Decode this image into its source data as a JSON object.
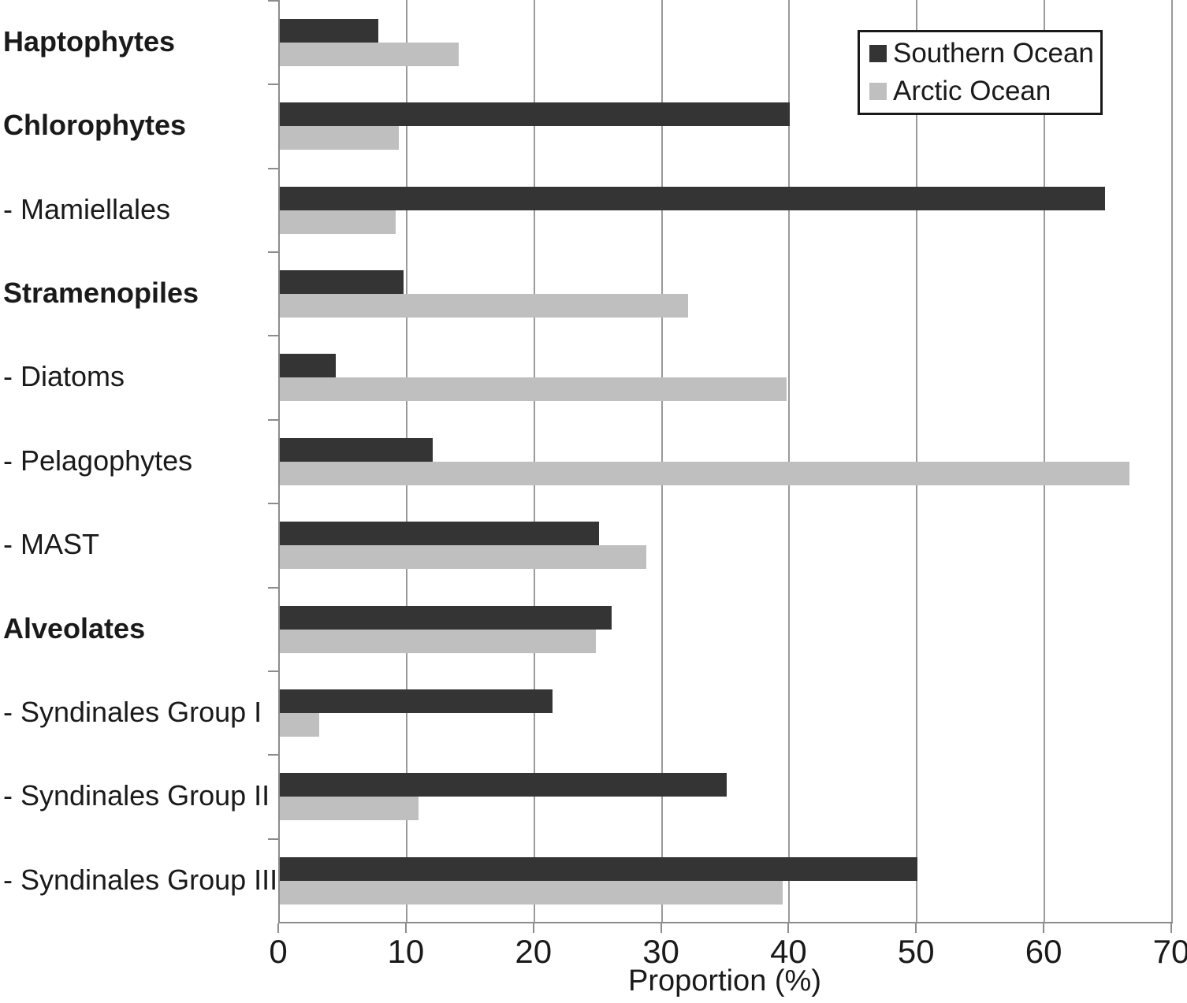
{
  "chart_data": {
    "type": "bar",
    "orientation": "horizontal",
    "title": "",
    "xlabel": "Proportion (%)",
    "ylabel": "",
    "xlim": [
      0,
      70
    ],
    "xticks": [
      0,
      10,
      20,
      30,
      40,
      50,
      60,
      70
    ],
    "grid": "vertical gridlines every 10",
    "legend_position": "top-right",
    "categories": [
      {
        "label": "Haptophytes",
        "bold": true
      },
      {
        "label": "Chlorophytes",
        "bold": true
      },
      {
        "label": "- Mamiellales",
        "bold": false
      },
      {
        "label": "Stramenopiles",
        "bold": true
      },
      {
        "label": "- Diatoms",
        "bold": false
      },
      {
        "label": "- Pelagophytes",
        "bold": false
      },
      {
        "label": "- MAST",
        "bold": false
      },
      {
        "label": "Alveolates",
        "bold": true
      },
      {
        "label": "- Syndinales Group I",
        "bold": false
      },
      {
        "label": "- Syndinales Group II",
        "bold": false
      },
      {
        "label": "- Syndinales Group III",
        "bold": false
      }
    ],
    "series": [
      {
        "name": "Southern Ocean",
        "color": "#343434",
        "values": [
          7.7,
          40,
          64.7,
          9.7,
          4.4,
          12,
          25,
          26,
          21.4,
          35,
          50
        ]
      },
      {
        "name": "Arctic Ocean",
        "color": "#bfbfbf",
        "values": [
          14,
          9.3,
          9.1,
          32,
          39.7,
          66.6,
          28.7,
          24.8,
          3.1,
          10.9,
          39.4
        ]
      }
    ]
  },
  "colors": {
    "gridline": "#9a9a9a",
    "axis": "#8c8c8c",
    "text": "#1a1a1a",
    "legend_border": "#1a1a1a",
    "background": "#ffffff"
  }
}
